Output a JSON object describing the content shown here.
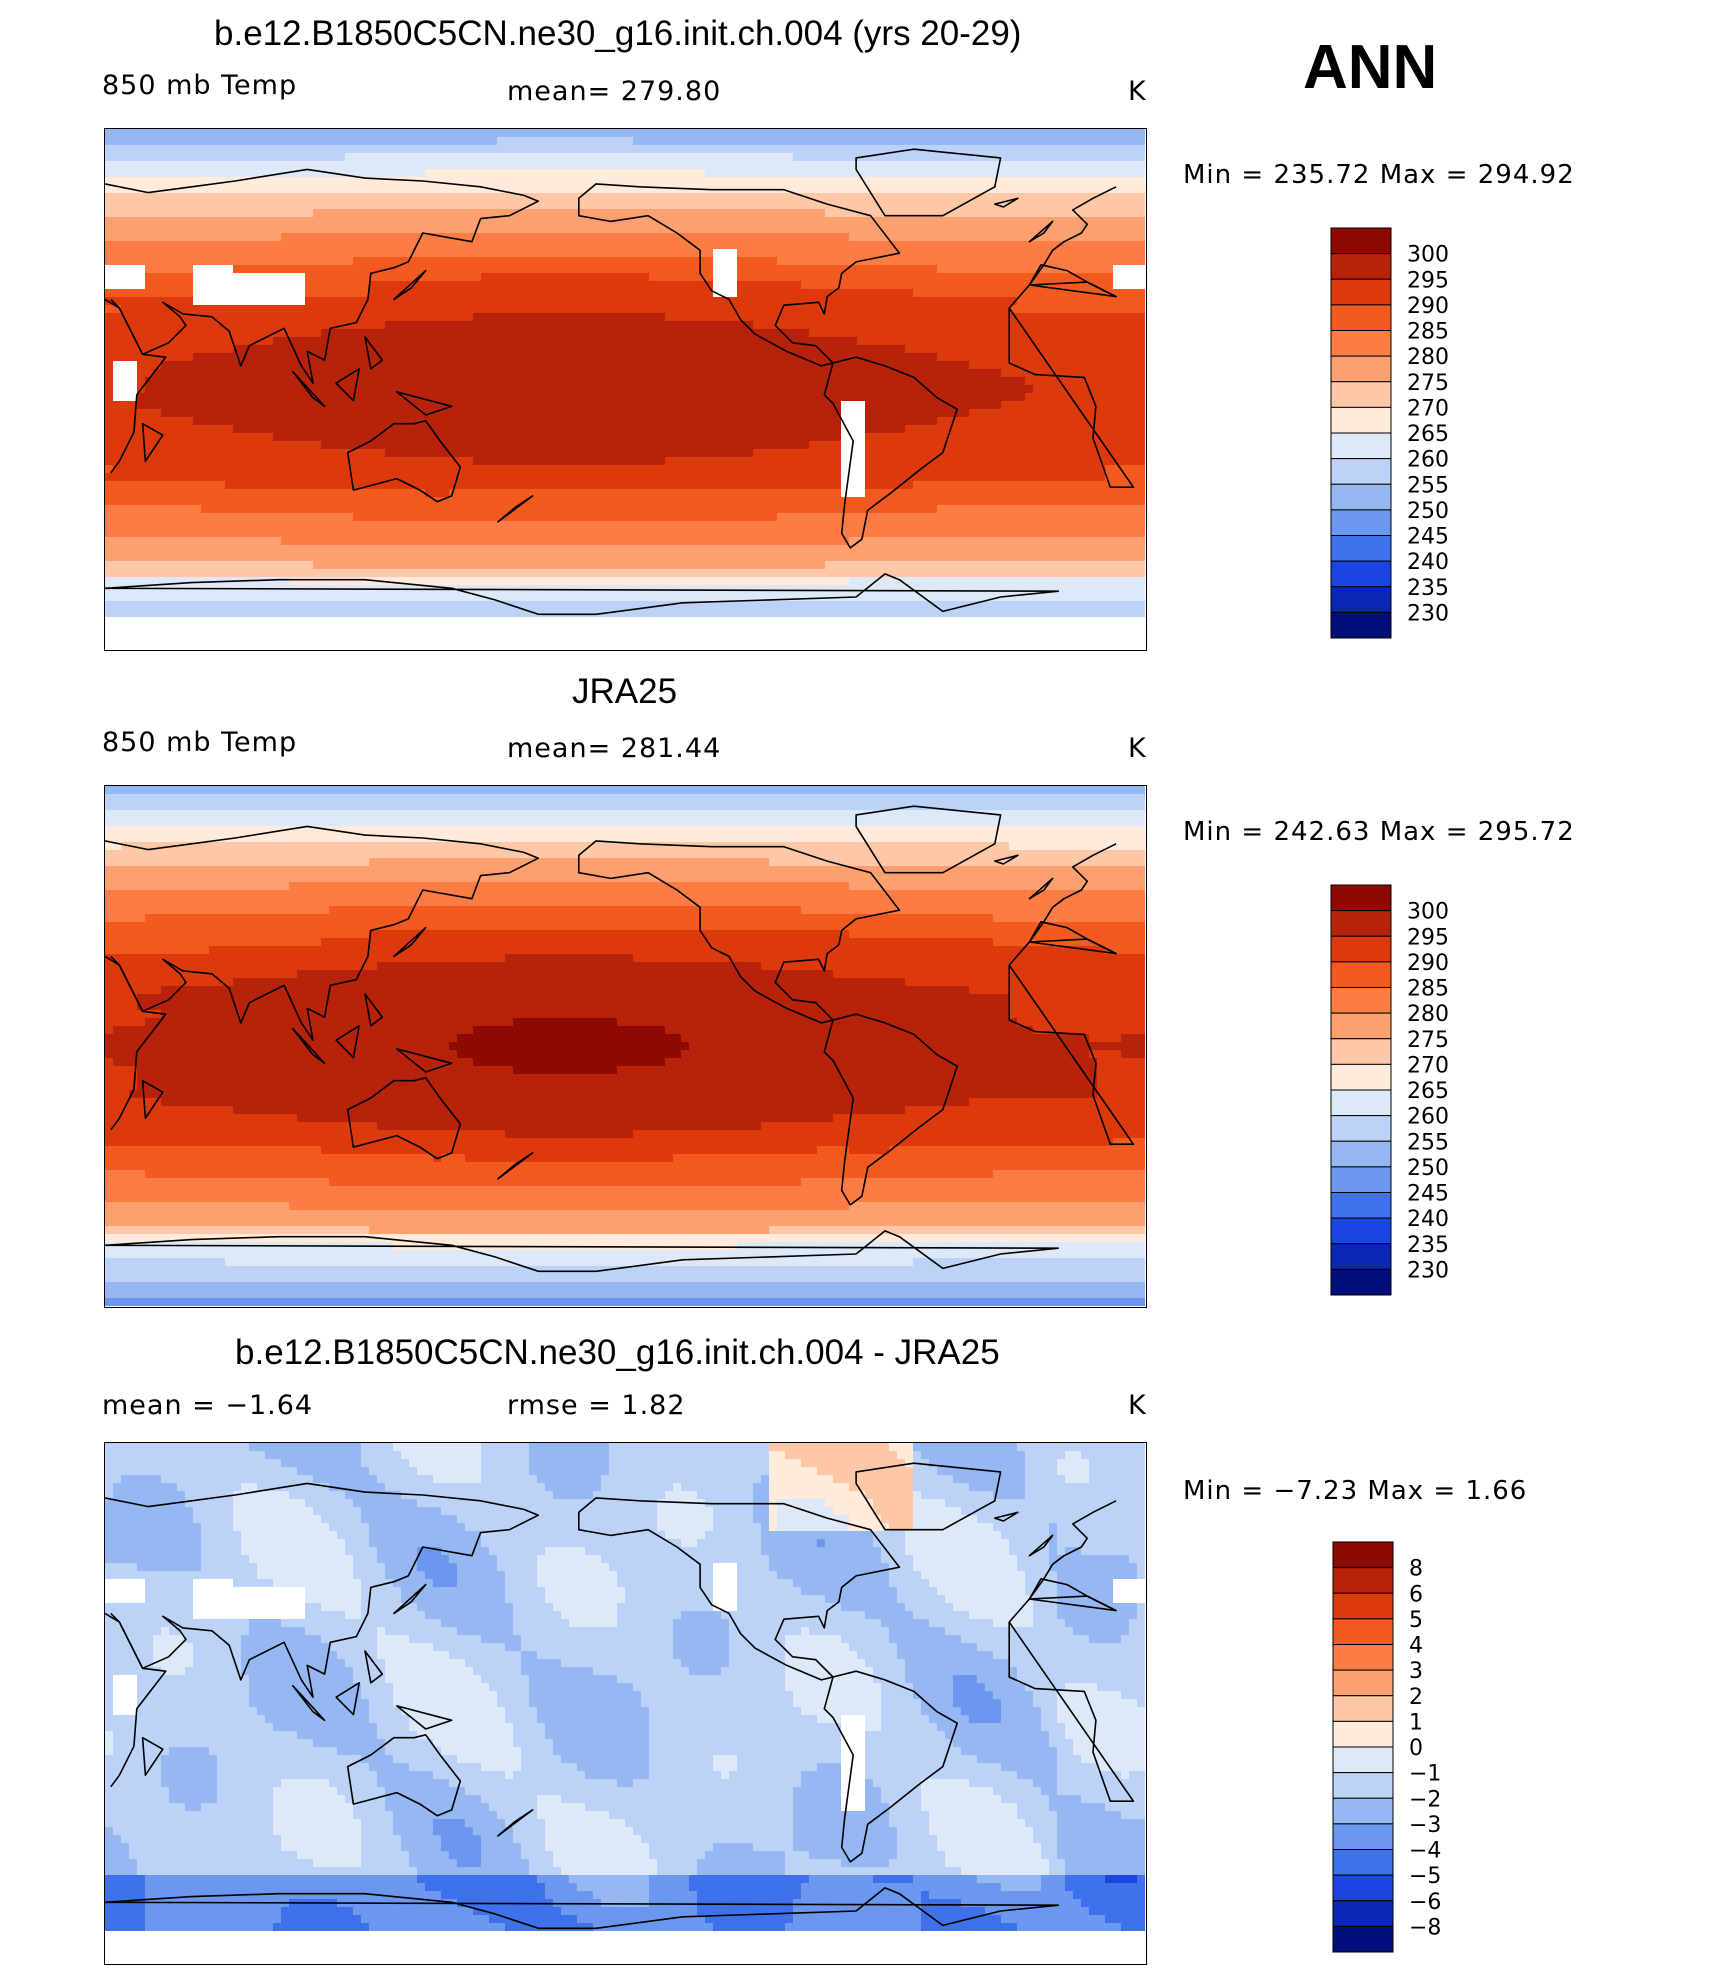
{
  "season": "ANN",
  "panels": [
    {
      "id": "model",
      "title": "b.e12.B1850C5CN.ne30_g16.init.ch.004 (yrs 20-29)",
      "left_label": "850 mb Temp",
      "mid_label": "mean=  279.80",
      "right_label": "K",
      "minmax": "Min  =  235.72  Max  =  294.92",
      "colorbar": {
        "labels": [
          "300",
          "295",
          "290",
          "285",
          "280",
          "275",
          "270",
          "265",
          "260",
          "255",
          "250",
          "245",
          "240",
          "235",
          "230"
        ],
        "colors": [
          "#8c0a00",
          "#b7220a",
          "#dc3a0d",
          "#f35a1f",
          "#fb7c44",
          "#fda070",
          "#fec8a8",
          "#feebdc",
          "#dde9f8",
          "#bcd3f7",
          "#95b7f2",
          "#6b97ee",
          "#3e71ea",
          "#1a45e0",
          "#0a28b3",
          "#000f7a"
        ]
      },
      "map": {
        "mode": "temp",
        "model": true
      }
    },
    {
      "id": "obs",
      "title": "JRA25",
      "left_label": "850 mb Temp",
      "mid_label": "mean=  281.44",
      "right_label": "K",
      "minmax": "Min  =  242.63  Max  =  295.72",
      "colorbar": {
        "labels": [
          "300",
          "295",
          "290",
          "285",
          "280",
          "275",
          "270",
          "265",
          "260",
          "255",
          "250",
          "245",
          "240",
          "235",
          "230"
        ],
        "colors": [
          "#8c0a00",
          "#b7220a",
          "#dc3a0d",
          "#f35a1f",
          "#fb7c44",
          "#fda070",
          "#fec8a8",
          "#feebdc",
          "#dde9f8",
          "#bcd3f7",
          "#95b7f2",
          "#6b97ee",
          "#3e71ea",
          "#1a45e0",
          "#0a28b3",
          "#000f7a"
        ]
      },
      "map": {
        "mode": "temp",
        "model": false
      }
    },
    {
      "id": "diff",
      "title": "b.e12.B1850C5CN.ne30_g16.init.ch.004 - JRA25",
      "left_label": "mean =   −1.64",
      "mid_label": "rmse =    1.82",
      "right_label": "K",
      "minmax": "Min  =   −7.23  Max  =    1.66",
      "colorbar": {
        "labels": [
          "8",
          "6",
          "5",
          "4",
          "3",
          "2",
          "1",
          "0",
          "−1",
          "−2",
          "−3",
          "−4",
          "−5",
          "−6",
          "−8"
        ],
        "colors": [
          "#8c0a00",
          "#b7220a",
          "#dc3a0d",
          "#f35a1f",
          "#fb7c44",
          "#fda070",
          "#fec8a8",
          "#feebdc",
          "#dde9f8",
          "#bcd3f7",
          "#95b7f2",
          "#6b97ee",
          "#3e71ea",
          "#1a45e0",
          "#0a28b3",
          "#000f7a"
        ]
      },
      "map": {
        "mode": "diff",
        "model": true
      }
    }
  ],
  "chart_data": [
    {
      "type": "heatmap",
      "title": "b.e12.B1850C5CN.ne30_g16.init.ch.004 (yrs 20-29)",
      "variable": "850 mb Temp",
      "units": "K",
      "mean": 279.8,
      "min": 235.72,
      "max": 294.92,
      "contour_levels": [
        230,
        235,
        240,
        245,
        250,
        255,
        260,
        265,
        270,
        275,
        280,
        285,
        290,
        295,
        300
      ],
      "projection": "global cylindrical equidistant, Pacific-centered"
    },
    {
      "type": "heatmap",
      "title": "JRA25",
      "variable": "850 mb Temp",
      "units": "K",
      "mean": 281.44,
      "min": 242.63,
      "max": 295.72,
      "contour_levels": [
        230,
        235,
        240,
        245,
        250,
        255,
        260,
        265,
        270,
        275,
        280,
        285,
        290,
        295,
        300
      ],
      "projection": "global cylindrical equidistant, Pacific-centered"
    },
    {
      "type": "heatmap",
      "title": "b.e12.B1850C5CN.ne30_g16.init.ch.004 - JRA25",
      "units": "K",
      "mean": -1.64,
      "rmse": 1.82,
      "min": -7.23,
      "max": 1.66,
      "contour_levels": [
        -8,
        -6,
        -5,
        -4,
        -3,
        -2,
        -1,
        0,
        1,
        2,
        3,
        4,
        5,
        6,
        8
      ],
      "projection": "global cylindrical equidistant, Pacific-centered"
    }
  ]
}
